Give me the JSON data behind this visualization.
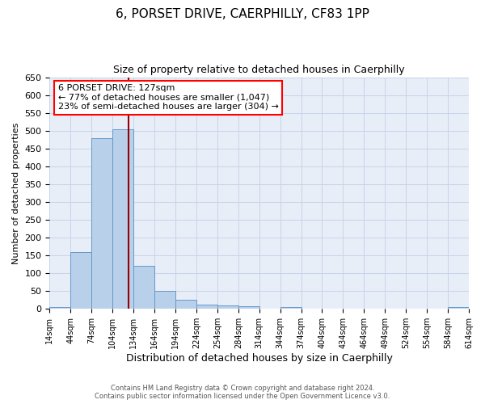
{
  "title": "6, PORSET DRIVE, CAERPHILLY, CF83 1PP",
  "subtitle": "Size of property relative to detached houses in Caerphilly",
  "xlabel": "Distribution of detached houses by size in Caerphilly",
  "ylabel": "Number of detached properties",
  "bar_values": [
    5,
    160,
    480,
    505,
    120,
    50,
    25,
    12,
    10,
    8,
    0,
    5,
    0,
    0,
    0,
    0,
    0,
    0,
    0,
    5
  ],
  "bin_edges": [
    14,
    44,
    74,
    104,
    134,
    164,
    194,
    224,
    254,
    284,
    314,
    344,
    374,
    404,
    434,
    464,
    494,
    524,
    554,
    584,
    614
  ],
  "bin_labels": [
    "14sqm",
    "44sqm",
    "74sqm",
    "104sqm",
    "134sqm",
    "164sqm",
    "194sqm",
    "224sqm",
    "254sqm",
    "284sqm",
    "314sqm",
    "344sqm",
    "374sqm",
    "404sqm",
    "434sqm",
    "464sqm",
    "494sqm",
    "524sqm",
    "554sqm",
    "584sqm",
    "614sqm"
  ],
  "bar_color": "#b8d0ea",
  "bar_edge_color": "#6699cc",
  "vline_x": 127,
  "vline_color": "#990000",
  "ylim": [
    0,
    650
  ],
  "yticks": [
    0,
    50,
    100,
    150,
    200,
    250,
    300,
    350,
    400,
    450,
    500,
    550,
    600,
    650
  ],
  "annotation_title": "6 PORSET DRIVE: 127sqm",
  "annotation_line1": "← 77% of detached houses are smaller (1,047)",
  "annotation_line2": "23% of semi-detached houses are larger (304) →",
  "footer_line1": "Contains HM Land Registry data © Crown copyright and database right 2024.",
  "footer_line2": "Contains public sector information licensed under the Open Government Licence v3.0.",
  "grid_color": "#c8d4e8",
  "background_color": "#e8eef8"
}
